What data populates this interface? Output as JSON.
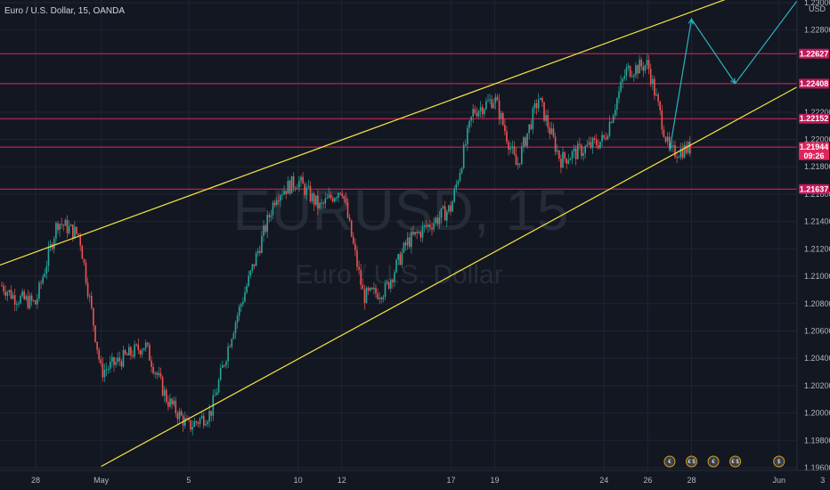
{
  "header": {
    "symbol_text": "Euro / U.S. Dollar, 15, OANDA"
  },
  "watermark": {
    "symbol": "EURUSD, 15",
    "description": "Euro / U.S. Dollar"
  },
  "price_axis": {
    "currency": "USD"
  },
  "colors": {
    "background": "#131722",
    "candle_up": "#26a69a",
    "candle_down": "#ef5350",
    "channel_line": "#f5e642",
    "horizontal_line": "#e0245e",
    "price_label_bg": "#c2185b",
    "projection_arrow": "#2bb3c0"
  },
  "chart_data": {
    "type": "candlestick",
    "title": "",
    "x_tick_labels": [
      "28",
      "May",
      "5",
      "10",
      "12",
      "17",
      "19",
      "24",
      "26",
      "28",
      "Jun",
      "3"
    ],
    "y_tick_labels": [
      "1.23000",
      "1.22800",
      "1.22200",
      "1.22000",
      "1.21800",
      "1.21600",
      "1.21400",
      "1.21200",
      "1.21000",
      "1.20800",
      "1.20600",
      "1.20400",
      "1.20200",
      "1.20000",
      "1.19800",
      "1.19600"
    ],
    "ylim": [
      1.1956,
      1.2305
    ],
    "horizontal_levels": [
      1.22627,
      1.22408,
      1.22152,
      1.21944,
      1.21637
    ],
    "level_labels": [
      "1.22627",
      "1.22408",
      "1.22152",
      "1.21944",
      "1.21637"
    ],
    "current_price": 1.21944,
    "countdown": "09:26",
    "channel_upper": [
      {
        "x": "Apr 26",
        "y": 1.2106
      },
      {
        "x": "May 30",
        "y": 1.2305
      }
    ],
    "channel_lower": [
      {
        "x": "May 1",
        "y": 1.1961
      },
      {
        "x": "Jun 5",
        "y": 1.2266
      }
    ],
    "projection_path": [
      {
        "x": "May 27",
        "y": 1.2192
      },
      {
        "x": "May 28",
        "y": 1.2288
      },
      {
        "x": "May 30",
        "y": 1.2241
      },
      {
        "x": "Jun 2",
        "y": 1.2305
      }
    ],
    "price_path": [
      {
        "x": "Apr 26",
        "y": 1.21
      },
      {
        "x": "Apr 27",
        "y": 1.2085
      },
      {
        "x": "Apr 28",
        "y": 1.208
      },
      {
        "x": "Apr 29",
        "y": 1.214
      },
      {
        "x": "Apr 30",
        "y": 1.213
      },
      {
        "x": "May 1",
        "y": 1.203
      },
      {
        "x": "May 3",
        "y": 1.205
      },
      {
        "x": "May 4",
        "y": 1.201
      },
      {
        "x": "May 5",
        "y": 1.199
      },
      {
        "x": "May 6",
        "y": 1.2
      },
      {
        "x": "May 7",
        "y": 1.206
      },
      {
        "x": "May 9",
        "y": 1.216
      },
      {
        "x": "May 10",
        "y": 1.217
      },
      {
        "x": "May 11",
        "y": 1.215
      },
      {
        "x": "May 12",
        "y": 1.2165
      },
      {
        "x": "May 13",
        "y": 1.2085
      },
      {
        "x": "May 14",
        "y": 1.209
      },
      {
        "x": "May 15",
        "y": 1.2125
      },
      {
        "x": "May 17",
        "y": 1.215
      },
      {
        "x": "May 18",
        "y": 1.222
      },
      {
        "x": "May 19",
        "y": 1.223
      },
      {
        "x": "May 20",
        "y": 1.218
      },
      {
        "x": "May 21",
        "y": 1.223
      },
      {
        "x": "May 22",
        "y": 1.2185
      },
      {
        "x": "May 24",
        "y": 1.22
      },
      {
        "x": "May 25",
        "y": 1.225
      },
      {
        "x": "May 26",
        "y": 1.2255
      },
      {
        "x": "May 27",
        "y": 1.219
      },
      {
        "x": "May 28",
        "y": 1.2194
      }
    ]
  },
  "price_labels": [
    {
      "text": "1.22627",
      "value": 1.22627
    },
    {
      "text": "1.22408",
      "value": 1.22408
    },
    {
      "text": "1.22152",
      "value": 1.22152
    },
    {
      "text": "1.21944",
      "value": 1.21944
    },
    {
      "text": "1.21637",
      "value": 1.21637
    }
  ],
  "events": [
    {
      "x": "May 27",
      "text": "€"
    },
    {
      "x": "May 28",
      "text": "€ $"
    },
    {
      "x": "May 29",
      "text": "€"
    },
    {
      "x": "May 30",
      "text": "€ $"
    },
    {
      "x": "Jun 1",
      "text": "$"
    }
  ]
}
